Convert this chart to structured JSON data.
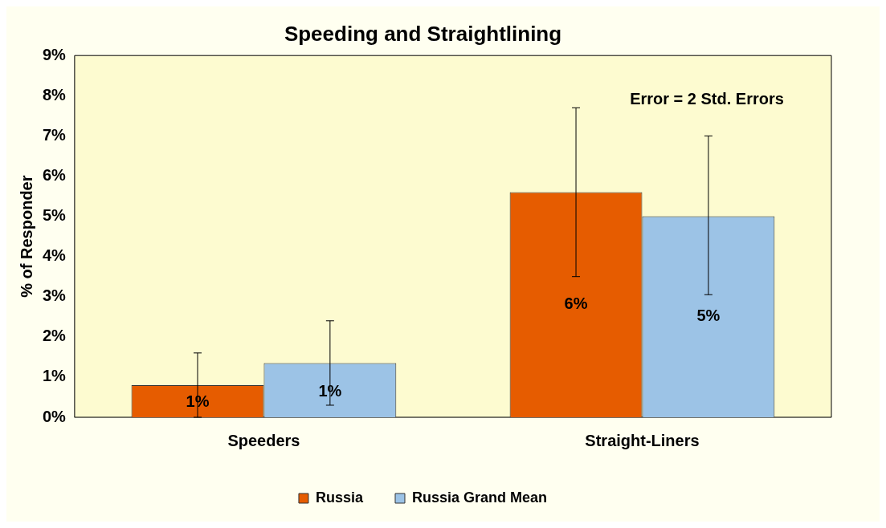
{
  "chart_data": {
    "type": "bar",
    "title": "Speeding and Straightlining",
    "ylabel": "% of Responder",
    "categories": [
      "Speeders",
      "Straight-Liners"
    ],
    "series": [
      {
        "name": "Russia",
        "color": "#e65c00",
        "values": [
          0.8,
          5.6
        ],
        "errors": [
          [
            0,
            1.6
          ],
          [
            3.5,
            7.7
          ]
        ],
        "value_labels": [
          "1%",
          "6%"
        ]
      },
      {
        "name": "Russia Grand Mean",
        "color": "#9cc3e6",
        "values": [
          1.35,
          5.0
        ],
        "errors": [
          [
            0.3,
            2.4
          ],
          [
            3.05,
            7.0
          ]
        ],
        "value_labels": [
          "1%",
          "5%"
        ]
      }
    ],
    "ylim": [
      0,
      9
    ],
    "yticks": [
      {
        "value": 0,
        "label": "0%"
      },
      {
        "value": 1,
        "label": "1%"
      },
      {
        "value": 2,
        "label": "2%"
      },
      {
        "value": 3,
        "label": "3%"
      },
      {
        "value": 4,
        "label": "4%"
      },
      {
        "value": 5,
        "label": "5%"
      },
      {
        "value": 6,
        "label": "6%"
      },
      {
        "value": 7,
        "label": "7%"
      },
      {
        "value": 8,
        "label": "8%"
      },
      {
        "value": 9,
        "label": "9%"
      }
    ],
    "annotations": [
      "Error = 2 Std. Errors"
    ],
    "grid": false,
    "legend": "bottom"
  }
}
